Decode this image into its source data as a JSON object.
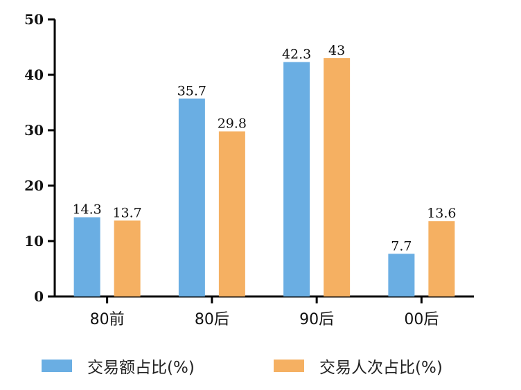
{
  "chart_data": {
    "type": "bar",
    "categories": [
      "80前",
      "80后",
      "90后",
      "00后"
    ],
    "series": [
      {
        "name": "交易额占比(%)",
        "color": "#6aaee3",
        "values": [
          14.3,
          35.7,
          42.3,
          7.7
        ],
        "labels": [
          "14.3",
          "35.7",
          "42.3",
          "7.7"
        ]
      },
      {
        "name": "交易人次占比(%)",
        "color": "#f5b062",
        "values": [
          13.7,
          29.8,
          43,
          13.6
        ],
        "labels": [
          "13.7",
          "29.8",
          "43",
          "13.6"
        ]
      }
    ],
    "yticks": [
      "0",
      "10",
      "20",
      "30",
      "40",
      "50"
    ],
    "ylim": [
      0,
      50
    ],
    "grid": false,
    "legend_position": "bottom"
  }
}
